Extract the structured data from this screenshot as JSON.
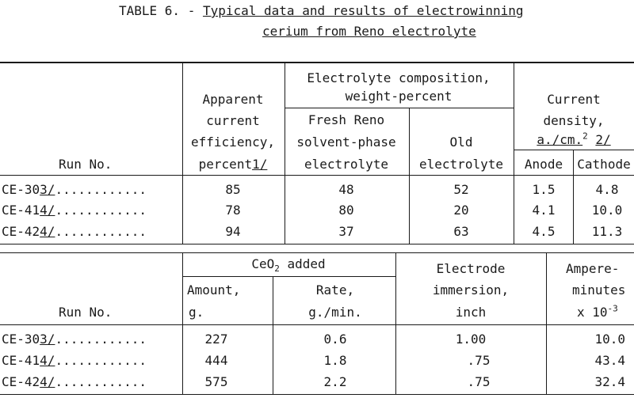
{
  "title": {
    "prefix": "TABLE 6. - ",
    "line1": "Typical data and results of electrowinning",
    "line2": "cerium from Reno electrolyte"
  },
  "table1": {
    "headers": {
      "run_no": "Run No.",
      "apparent_l1": "Apparent",
      "apparent_l2": "current",
      "apparent_l3": "efficiency,",
      "apparent_l4": "percent",
      "apparent_fn": "1/",
      "electrolyte_l1": "Electrolyte composition,",
      "electrolyte_l2": "weight-percent",
      "fresh_l1": "Fresh Reno",
      "fresh_l2": "solvent-phase",
      "fresh_l3": "electrolyte",
      "old_l1": "Old",
      "old_l2": "electrolyte",
      "current_l1": "Current",
      "current_l2": "density,",
      "current_l3": "a./cm.",
      "current_sup": "2",
      "current_fn": "2/",
      "anode": "Anode",
      "cathode": "Cathode"
    },
    "rows": [
      {
        "run": "CE-30",
        "fn": "3/",
        "dots": "............",
        "apparent": "85",
        "fresh": "48",
        "old": "52",
        "anode": "1.5",
        "cathode": "4.8"
      },
      {
        "run": "CE-41",
        "fn": "4/",
        "dots": "............",
        "apparent": "78",
        "fresh": "80",
        "old": "20",
        "anode": "4.1",
        "cathode": "10.0"
      },
      {
        "run": "CE-42",
        "fn": "4/",
        "dots": "............",
        "apparent": "94",
        "fresh": "37",
        "old": "63",
        "anode": "4.5",
        "cathode": "11.3"
      }
    ]
  },
  "table2": {
    "headers": {
      "run_no": "Run No.",
      "ceo2_main": "CeO",
      "ceo2_sub": "2",
      "ceo2_rest": " added",
      "amount_l1": "Amount,",
      "amount_l2": "g.",
      "rate_l1": "Rate,",
      "rate_l2": "g./min.",
      "immersion_l1": "Electrode",
      "immersion_l2": "immersion,",
      "immersion_l3": "inch",
      "amp_l1": "Ampere-",
      "amp_l2": "minutes",
      "amp_l3": "x 10",
      "amp_sup": "-3"
    },
    "rows": [
      {
        "run": "CE-30",
        "fn": "3/",
        "dots": "............",
        "amount": "227",
        "rate": "0.6",
        "immersion": "1.00",
        "amp": "10.0"
      },
      {
        "run": "CE-41",
        "fn": "4/",
        "dots": "............",
        "amount": "444",
        "rate": "1.8",
        "immersion": ".75",
        "amp": "43.4"
      },
      {
        "run": "CE-42",
        "fn": "4/",
        "dots": "............",
        "amount": "575",
        "rate": "2.2",
        "immersion": ".75",
        "amp": "32.4"
      }
    ]
  }
}
